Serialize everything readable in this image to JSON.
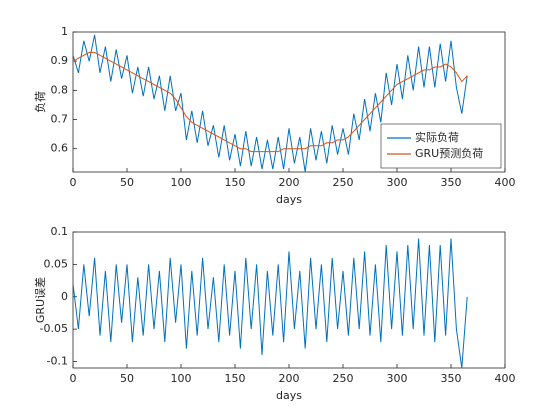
{
  "chart_data": [
    {
      "type": "line",
      "ylabel": "负荷",
      "xlabel": "days",
      "x": [
        0,
        5,
        10,
        15,
        20,
        25,
        30,
        35,
        40,
        45,
        50,
        55,
        60,
        65,
        70,
        75,
        80,
        85,
        90,
        95,
        100,
        105,
        110,
        115,
        120,
        125,
        130,
        135,
        140,
        145,
        150,
        155,
        160,
        165,
        170,
        175,
        180,
        185,
        190,
        195,
        200,
        205,
        210,
        215,
        220,
        225,
        230,
        235,
        240,
        245,
        250,
        255,
        260,
        265,
        270,
        275,
        280,
        285,
        290,
        295,
        300,
        305,
        310,
        315,
        320,
        325,
        330,
        335,
        340,
        345,
        350,
        355,
        360,
        365
      ],
      "series": [
        {
          "name": "实际负荷",
          "color": "#0072BD",
          "values": [
            0.92,
            0.86,
            0.97,
            0.9,
            0.99,
            0.86,
            0.95,
            0.83,
            0.94,
            0.84,
            0.92,
            0.79,
            0.88,
            0.78,
            0.88,
            0.77,
            0.85,
            0.73,
            0.85,
            0.73,
            0.79,
            0.63,
            0.73,
            0.62,
            0.73,
            0.61,
            0.68,
            0.57,
            0.68,
            0.56,
            0.65,
            0.54,
            0.66,
            0.54,
            0.64,
            0.53,
            0.63,
            0.53,
            0.64,
            0.53,
            0.67,
            0.55,
            0.64,
            0.52,
            0.67,
            0.56,
            0.66,
            0.55,
            0.68,
            0.58,
            0.67,
            0.58,
            0.72,
            0.63,
            0.77,
            0.66,
            0.79,
            0.69,
            0.86,
            0.75,
            0.89,
            0.77,
            0.92,
            0.8,
            0.95,
            0.81,
            0.95,
            0.81,
            0.96,
            0.83,
            0.97,
            0.81,
            0.72,
            0.85
          ]
        },
        {
          "name": "GRU预测负荷",
          "color": "#D95319",
          "values": [
            0.9,
            0.91,
            0.92,
            0.93,
            0.93,
            0.92,
            0.91,
            0.9,
            0.89,
            0.88,
            0.87,
            0.86,
            0.85,
            0.84,
            0.83,
            0.82,
            0.81,
            0.8,
            0.79,
            0.77,
            0.74,
            0.71,
            0.69,
            0.68,
            0.67,
            0.66,
            0.65,
            0.64,
            0.63,
            0.62,
            0.61,
            0.6,
            0.6,
            0.59,
            0.59,
            0.59,
            0.59,
            0.59,
            0.59,
            0.6,
            0.6,
            0.6,
            0.6,
            0.6,
            0.61,
            0.61,
            0.61,
            0.62,
            0.62,
            0.63,
            0.63,
            0.64,
            0.66,
            0.68,
            0.7,
            0.72,
            0.74,
            0.76,
            0.78,
            0.8,
            0.82,
            0.83,
            0.84,
            0.85,
            0.86,
            0.87,
            0.87,
            0.88,
            0.88,
            0.89,
            0.88,
            0.86,
            0.83,
            0.85
          ]
        }
      ],
      "xlim": [
        0,
        400
      ],
      "xticks": [
        0,
        50,
        100,
        150,
        200,
        250,
        300,
        350,
        400
      ],
      "ylim": [
        0.52,
        1
      ],
      "yticks": [
        0.6,
        0.7,
        0.8,
        0.9,
        1
      ],
      "legend": "lower right"
    },
    {
      "type": "line",
      "ylabel": "GRU误差",
      "xlabel": "days",
      "x": [
        0,
        5,
        10,
        15,
        20,
        25,
        30,
        35,
        40,
        45,
        50,
        55,
        60,
        65,
        70,
        75,
        80,
        85,
        90,
        95,
        100,
        105,
        110,
        115,
        120,
        125,
        130,
        135,
        140,
        145,
        150,
        155,
        160,
        165,
        170,
        175,
        180,
        185,
        190,
        195,
        200,
        205,
        210,
        215,
        220,
        225,
        230,
        235,
        240,
        245,
        250,
        255,
        260,
        265,
        270,
        275,
        280,
        285,
        290,
        295,
        300,
        305,
        310,
        315,
        320,
        325,
        330,
        335,
        340,
        345,
        350,
        355,
        360,
        365
      ],
      "series": [
        {
          "color": "#0072BD",
          "values": [
            0.02,
            -0.05,
            0.05,
            -0.03,
            0.06,
            -0.06,
            0.04,
            -0.07,
            0.05,
            -0.04,
            0.05,
            -0.07,
            0.03,
            -0.06,
            0.05,
            -0.05,
            0.04,
            -0.07,
            0.06,
            -0.04,
            0.05,
            -0.08,
            0.04,
            -0.06,
            0.06,
            -0.05,
            0.03,
            -0.07,
            0.05,
            -0.06,
            0.04,
            -0.08,
            0.06,
            -0.05,
            0.05,
            -0.09,
            0.04,
            -0.06,
            0.05,
            -0.07,
            0.07,
            -0.05,
            0.04,
            -0.08,
            0.06,
            -0.05,
            0.05,
            -0.07,
            0.06,
            -0.05,
            0.04,
            -0.06,
            0.06,
            -0.05,
            0.07,
            -0.06,
            0.05,
            -0.07,
            0.08,
            -0.05,
            0.07,
            -0.06,
            0.08,
            -0.05,
            0.09,
            -0.06,
            0.08,
            -0.07,
            0.08,
            -0.06,
            0.09,
            -0.05,
            -0.11,
            0
          ]
        }
      ],
      "xlim": [
        0,
        400
      ],
      "xticks": [
        0,
        50,
        100,
        150,
        200,
        250,
        300,
        350,
        400
      ],
      "ylim": [
        -0.11,
        0.1
      ],
      "yticks": [
        -0.1,
        -0.05,
        0,
        0.05,
        0.1
      ]
    }
  ]
}
